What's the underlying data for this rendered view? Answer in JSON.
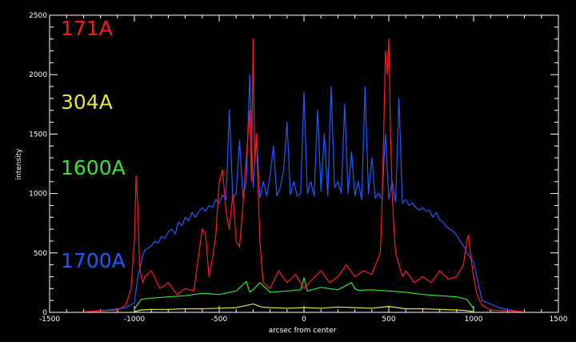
{
  "chart_data": {
    "type": "line",
    "xlabel": "arcsec from center",
    "ylabel": "intensity",
    "xlim": [
      -1500,
      1500
    ],
    "ylim": [
      0,
      2500
    ],
    "x_ticks": [
      -1500,
      -1000,
      -500,
      0,
      500,
      1000,
      1500
    ],
    "y_ticks": [
      0,
      500,
      1000,
      1500,
      2000,
      2500
    ],
    "background": "#000000",
    "axis_color": "#ffffff",
    "legend_position": "left, inside plot",
    "series": [
      {
        "name": "1700A",
        "color": "#1a5cff",
        "x": [
          -1250,
          -1150,
          -1050,
          -1000,
          -980,
          -960,
          -950,
          -940,
          -920,
          -900,
          -880,
          -860,
          -840,
          -820,
          -800,
          -780,
          -760,
          -740,
          -720,
          -700,
          -680,
          -660,
          -640,
          -620,
          -600,
          -580,
          -560,
          -540,
          -520,
          -500,
          -480,
          -460,
          -440,
          -420,
          -400,
          -380,
          -360,
          -340,
          -320,
          -300,
          -280,
          -260,
          -240,
          -220,
          -200,
          -180,
          -160,
          -140,
          -120,
          -100,
          -80,
          -60,
          -40,
          -20,
          0,
          20,
          40,
          60,
          80,
          100,
          120,
          140,
          160,
          180,
          200,
          220,
          240,
          260,
          280,
          300,
          320,
          340,
          360,
          380,
          400,
          420,
          440,
          460,
          480,
          500,
          520,
          540,
          560,
          580,
          600,
          620,
          640,
          660,
          680,
          700,
          720,
          740,
          760,
          780,
          800,
          820,
          840,
          860,
          880,
          900,
          920,
          940,
          950,
          960,
          970,
          980,
          990,
          1000,
          1050,
          1150,
          1250
        ],
        "y": [
          10,
          20,
          40,
          80,
          300,
          420,
          480,
          520,
          540,
          560,
          600,
          580,
          640,
          620,
          680,
          700,
          660,
          760,
          730,
          800,
          770,
          840,
          800,
          850,
          880,
          850,
          900,
          880,
          950,
          920,
          990,
          950,
          1700,
          960,
          1000,
          1450,
          970,
          1100,
          2000,
          1050,
          1500,
          960,
          1100,
          980,
          1150,
          1400,
          980,
          1050,
          1200,
          1600,
          990,
          1100,
          980,
          1000,
          1850,
          1000,
          1100,
          980,
          1700,
          1020,
          1500,
          980,
          1900,
          1050,
          1100,
          1000,
          1750,
          1000,
          1350,
          980,
          1100,
          950,
          1900,
          1000,
          1300,
          960,
          1000,
          950,
          1500,
          950,
          1100,
          930,
          1800,
          920,
          950,
          900,
          920,
          880,
          860,
          880,
          850,
          860,
          800,
          840,
          780,
          760,
          720,
          700,
          680,
          650,
          600,
          560,
          540,
          500,
          480,
          460,
          440,
          420,
          100,
          40,
          10
        ]
      },
      {
        "name": "1600A",
        "color": "#33e633",
        "x": [
          -1000,
          -980,
          -960,
          -900,
          -800,
          -700,
          -600,
          -500,
          -400,
          -340,
          -320,
          -300,
          -260,
          -200,
          -100,
          -20,
          0,
          20,
          100,
          200,
          280,
          300,
          320,
          400,
          500,
          600,
          700,
          800,
          900,
          960,
          980,
          1000
        ],
        "y": [
          30,
          70,
          110,
          120,
          130,
          140,
          160,
          150,
          180,
          260,
          170,
          190,
          250,
          170,
          180,
          190,
          290,
          180,
          210,
          190,
          250,
          200,
          185,
          190,
          180,
          170,
          150,
          140,
          130,
          110,
          70,
          30
        ]
      },
      {
        "name": "304A",
        "color": "#e6e633",
        "x": [
          -1000,
          -960,
          -900,
          -800,
          -700,
          -600,
          -500,
          -400,
          -300,
          -250,
          -200,
          -100,
          0,
          100,
          200,
          300,
          400,
          500,
          600,
          700,
          800,
          900,
          960,
          1000
        ],
        "y": [
          5,
          20,
          25,
          25,
          30,
          30,
          35,
          40,
          70,
          45,
          40,
          35,
          40,
          35,
          45,
          40,
          35,
          50,
          30,
          30,
          25,
          20,
          15,
          5
        ]
      },
      {
        "name": "171A",
        "color": "#ff1a1a",
        "x": [
          -1300,
          -1100,
          -1050,
          -1020,
          -1000,
          -990,
          -980,
          -970,
          -960,
          -950,
          -940,
          -900,
          -850,
          -800,
          -750,
          -700,
          -650,
          -600,
          -580,
          -560,
          -540,
          -520,
          -500,
          -480,
          -460,
          -440,
          -420,
          -400,
          -380,
          -360,
          -340,
          -330,
          -320,
          -310,
          -300,
          -290,
          -280,
          -270,
          -260,
          -250,
          -240,
          -200,
          -150,
          -100,
          -50,
          0,
          50,
          100,
          150,
          200,
          250,
          300,
          350,
          400,
          450,
          460,
          470,
          480,
          490,
          500,
          510,
          520,
          530,
          540,
          560,
          580,
          600,
          650,
          700,
          750,
          800,
          850,
          900,
          940,
          960,
          970,
          980,
          990,
          1000,
          1020,
          1050,
          1100,
          1300
        ],
        "y": [
          5,
          20,
          60,
          200,
          600,
          1150,
          900,
          400,
          300,
          250,
          300,
          350,
          200,
          250,
          150,
          200,
          180,
          700,
          660,
          300,
          450,
          650,
          1100,
          1200,
          850,
          700,
          1000,
          600,
          550,
          900,
          1300,
          1500,
          1700,
          1100,
          2300,
          1250,
          1500,
          1000,
          600,
          400,
          250,
          200,
          350,
          250,
          320,
          200,
          280,
          350,
          250,
          300,
          400,
          300,
          350,
          320,
          500,
          900,
          1500,
          2200,
          2000,
          2300,
          1500,
          1000,
          700,
          500,
          400,
          300,
          350,
          250,
          300,
          250,
          350,
          280,
          300,
          400,
          600,
          650,
          500,
          400,
          300,
          150,
          60,
          20,
          5
        ]
      }
    ]
  }
}
